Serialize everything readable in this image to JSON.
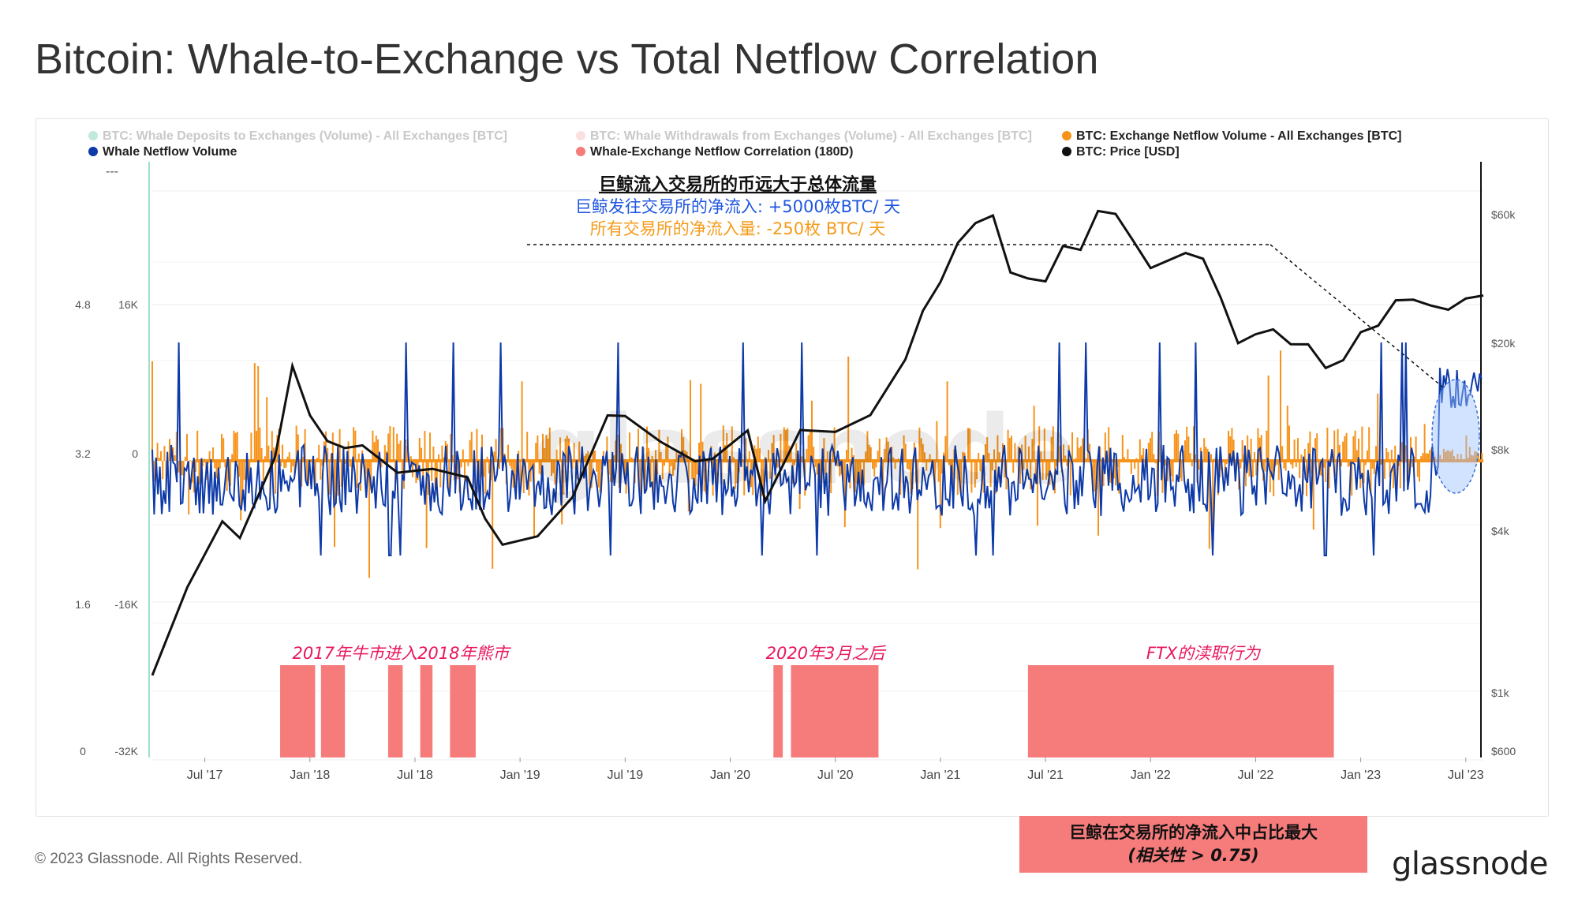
{
  "title": "Bitcoin: Whale-to-Exchange vs Total Netflow Correlation",
  "footer": {
    "copyright": "© 2023 Glassnode. All Rights Reserved.",
    "logo": "glassnode",
    "watermark": "glassnode"
  },
  "legend": [
    {
      "label": "BTC: Whale Deposits to Exchanges (Volume) - All Exchanges [BTC]",
      "color": "#8fd9c0",
      "faded": true
    },
    {
      "label": "BTC: Whale Withdrawals from Exchanges (Volume) - All Exchanges [BTC]",
      "color": "#f7c6c6",
      "faded": true
    },
    {
      "label": "BTC: Exchange Netflow Volume - All Exchanges [BTC]",
      "color": "#f7931a",
      "faded": false
    },
    {
      "label": "Whale Netflow Volume",
      "color": "#0d3aa9",
      "faded": false
    },
    {
      "label": "Whale-Exchange Netflow Correlation (180D)",
      "color": "#f67c7c",
      "faded": false
    },
    {
      "label": "BTC: Price [USD]",
      "color": "#111111",
      "faded": false
    }
  ],
  "legend_extra": "---",
  "annotations": {
    "top_heading": "巨鲸流入交易所的币远大于总体流量",
    "top_line_blue": "巨鲸发往交易所的净流入: +5000枚BTC/ 天",
    "top_line_orange": "所有交易所的净流入量: -250枚 BTC/ 天",
    "period_1": "2017年牛市进入2018年熊市",
    "period_2": "2020年3月之后",
    "period_3": "FTX的渎职行为",
    "callout_line1": "巨鲸在交易所的净流入中占比最大",
    "callout_line2": "(相关性 > 0.75)"
  },
  "colors": {
    "orange": "#f7931a",
    "blue": "#0d3aa9",
    "price": "#111111",
    "correlation": "#f67c7c",
    "annot_pink": "#e8175d",
    "annot_blue": "#1f56e0",
    "annot_orange": "#f59b1a"
  },
  "chart_data": {
    "type": "line",
    "x_ticks": [
      "Jul '17",
      "Jan '18",
      "Jul '18",
      "Jan '19",
      "Jul '19",
      "Jan '20",
      "Jul '20",
      "Jan '21",
      "Jul '21",
      "Jan '22",
      "Jul '22",
      "Jan '23",
      "Jul '23"
    ],
    "y_left_outer_ticks": [
      "4.8",
      "3.2",
      "1.6",
      "0"
    ],
    "y_left_inner_ticks": [
      "16K",
      "0",
      "-16K",
      "-32K"
    ],
    "y_right_ticks": [
      "$60k",
      "$20k",
      "$8k",
      "$4k",
      "$1k",
      "$600"
    ],
    "price_scale": "log",
    "series": [
      {
        "name": "BTC: Price [USD]",
        "points": [
          [
            "2017-04",
            1150
          ],
          [
            "2017-06",
            2500
          ],
          [
            "2017-08",
            4200
          ],
          [
            "2017-09",
            3800
          ],
          [
            "2017-11",
            7500
          ],
          [
            "2017-12",
            16000
          ],
          [
            "2018-01",
            11000
          ],
          [
            "2018-02",
            8500
          ],
          [
            "2018-03",
            8000
          ],
          [
            "2018-04",
            8500
          ],
          [
            "2018-06",
            6400
          ],
          [
            "2018-08",
            6800
          ],
          [
            "2018-10",
            6400
          ],
          [
            "2018-11",
            4300
          ],
          [
            "2018-12",
            3600
          ],
          [
            "2019-02",
            3800
          ],
          [
            "2019-04",
            5200
          ],
          [
            "2019-06",
            11000
          ],
          [
            "2019-07",
            10500
          ],
          [
            "2019-09",
            8500
          ],
          [
            "2019-11",
            7400
          ],
          [
            "2019-12",
            7200
          ],
          [
            "2020-02",
            9500
          ],
          [
            "2020-03",
            5200
          ],
          [
            "2020-05",
            9200
          ],
          [
            "2020-07",
            9500
          ],
          [
            "2020-09",
            10700
          ],
          [
            "2020-11",
            17000
          ],
          [
            "2020-12",
            27000
          ],
          [
            "2021-01",
            33000
          ],
          [
            "2021-02",
            47000
          ],
          [
            "2021-03",
            57000
          ],
          [
            "2021-04",
            58000
          ],
          [
            "2021-05",
            37000
          ],
          [
            "2021-06",
            35000
          ],
          [
            "2021-07",
            33000
          ],
          [
            "2021-08",
            47000
          ],
          [
            "2021-09",
            44000
          ],
          [
            "2021-10",
            61000
          ],
          [
            "2021-11",
            62000
          ],
          [
            "2021-12",
            47000
          ],
          [
            "2022-01",
            38000
          ],
          [
            "2022-03",
            44000
          ],
          [
            "2022-04",
            40000
          ],
          [
            "2022-05",
            30000
          ],
          [
            "2022-06",
            20000
          ],
          [
            "2022-07",
            21000
          ],
          [
            "2022-08",
            23000
          ],
          [
            "2022-09",
            19500
          ],
          [
            "2022-10",
            19500
          ],
          [
            "2022-11",
            16500
          ],
          [
            "2022-12",
            16800
          ],
          [
            "2023-01",
            22000
          ],
          [
            "2023-02",
            23500
          ],
          [
            "2023-03",
            28000
          ],
          [
            "2023-04",
            29500
          ],
          [
            "2023-05",
            27500
          ],
          [
            "2023-06",
            26000
          ],
          [
            "2023-07",
            30000
          ],
          [
            "2023-08",
            29500
          ]
        ]
      },
      {
        "name": "Whale Netflow Volume",
        "note_value": "+5000 BTC/day"
      },
      {
        "name": "BTC: Exchange Netflow Volume - All Exchanges [BTC]",
        "note_value": "-250 BTC/day"
      }
    ],
    "correlation_periods_above_threshold": [
      [
        "2017-11-10",
        "2018-01-10"
      ],
      [
        "2018-01-20",
        "2018-03-01"
      ],
      [
        "2018-05-15",
        "2018-06-10"
      ],
      [
        "2018-07-10",
        "2018-08-01"
      ],
      [
        "2018-09-01",
        "2018-10-15"
      ],
      [
        "2020-03-15",
        "2020-04-01"
      ],
      [
        "2020-04-15",
        "2020-09-15"
      ],
      [
        "2021-06-01",
        "2022-11-15"
      ]
    ],
    "correlation_threshold": 0.75
  }
}
